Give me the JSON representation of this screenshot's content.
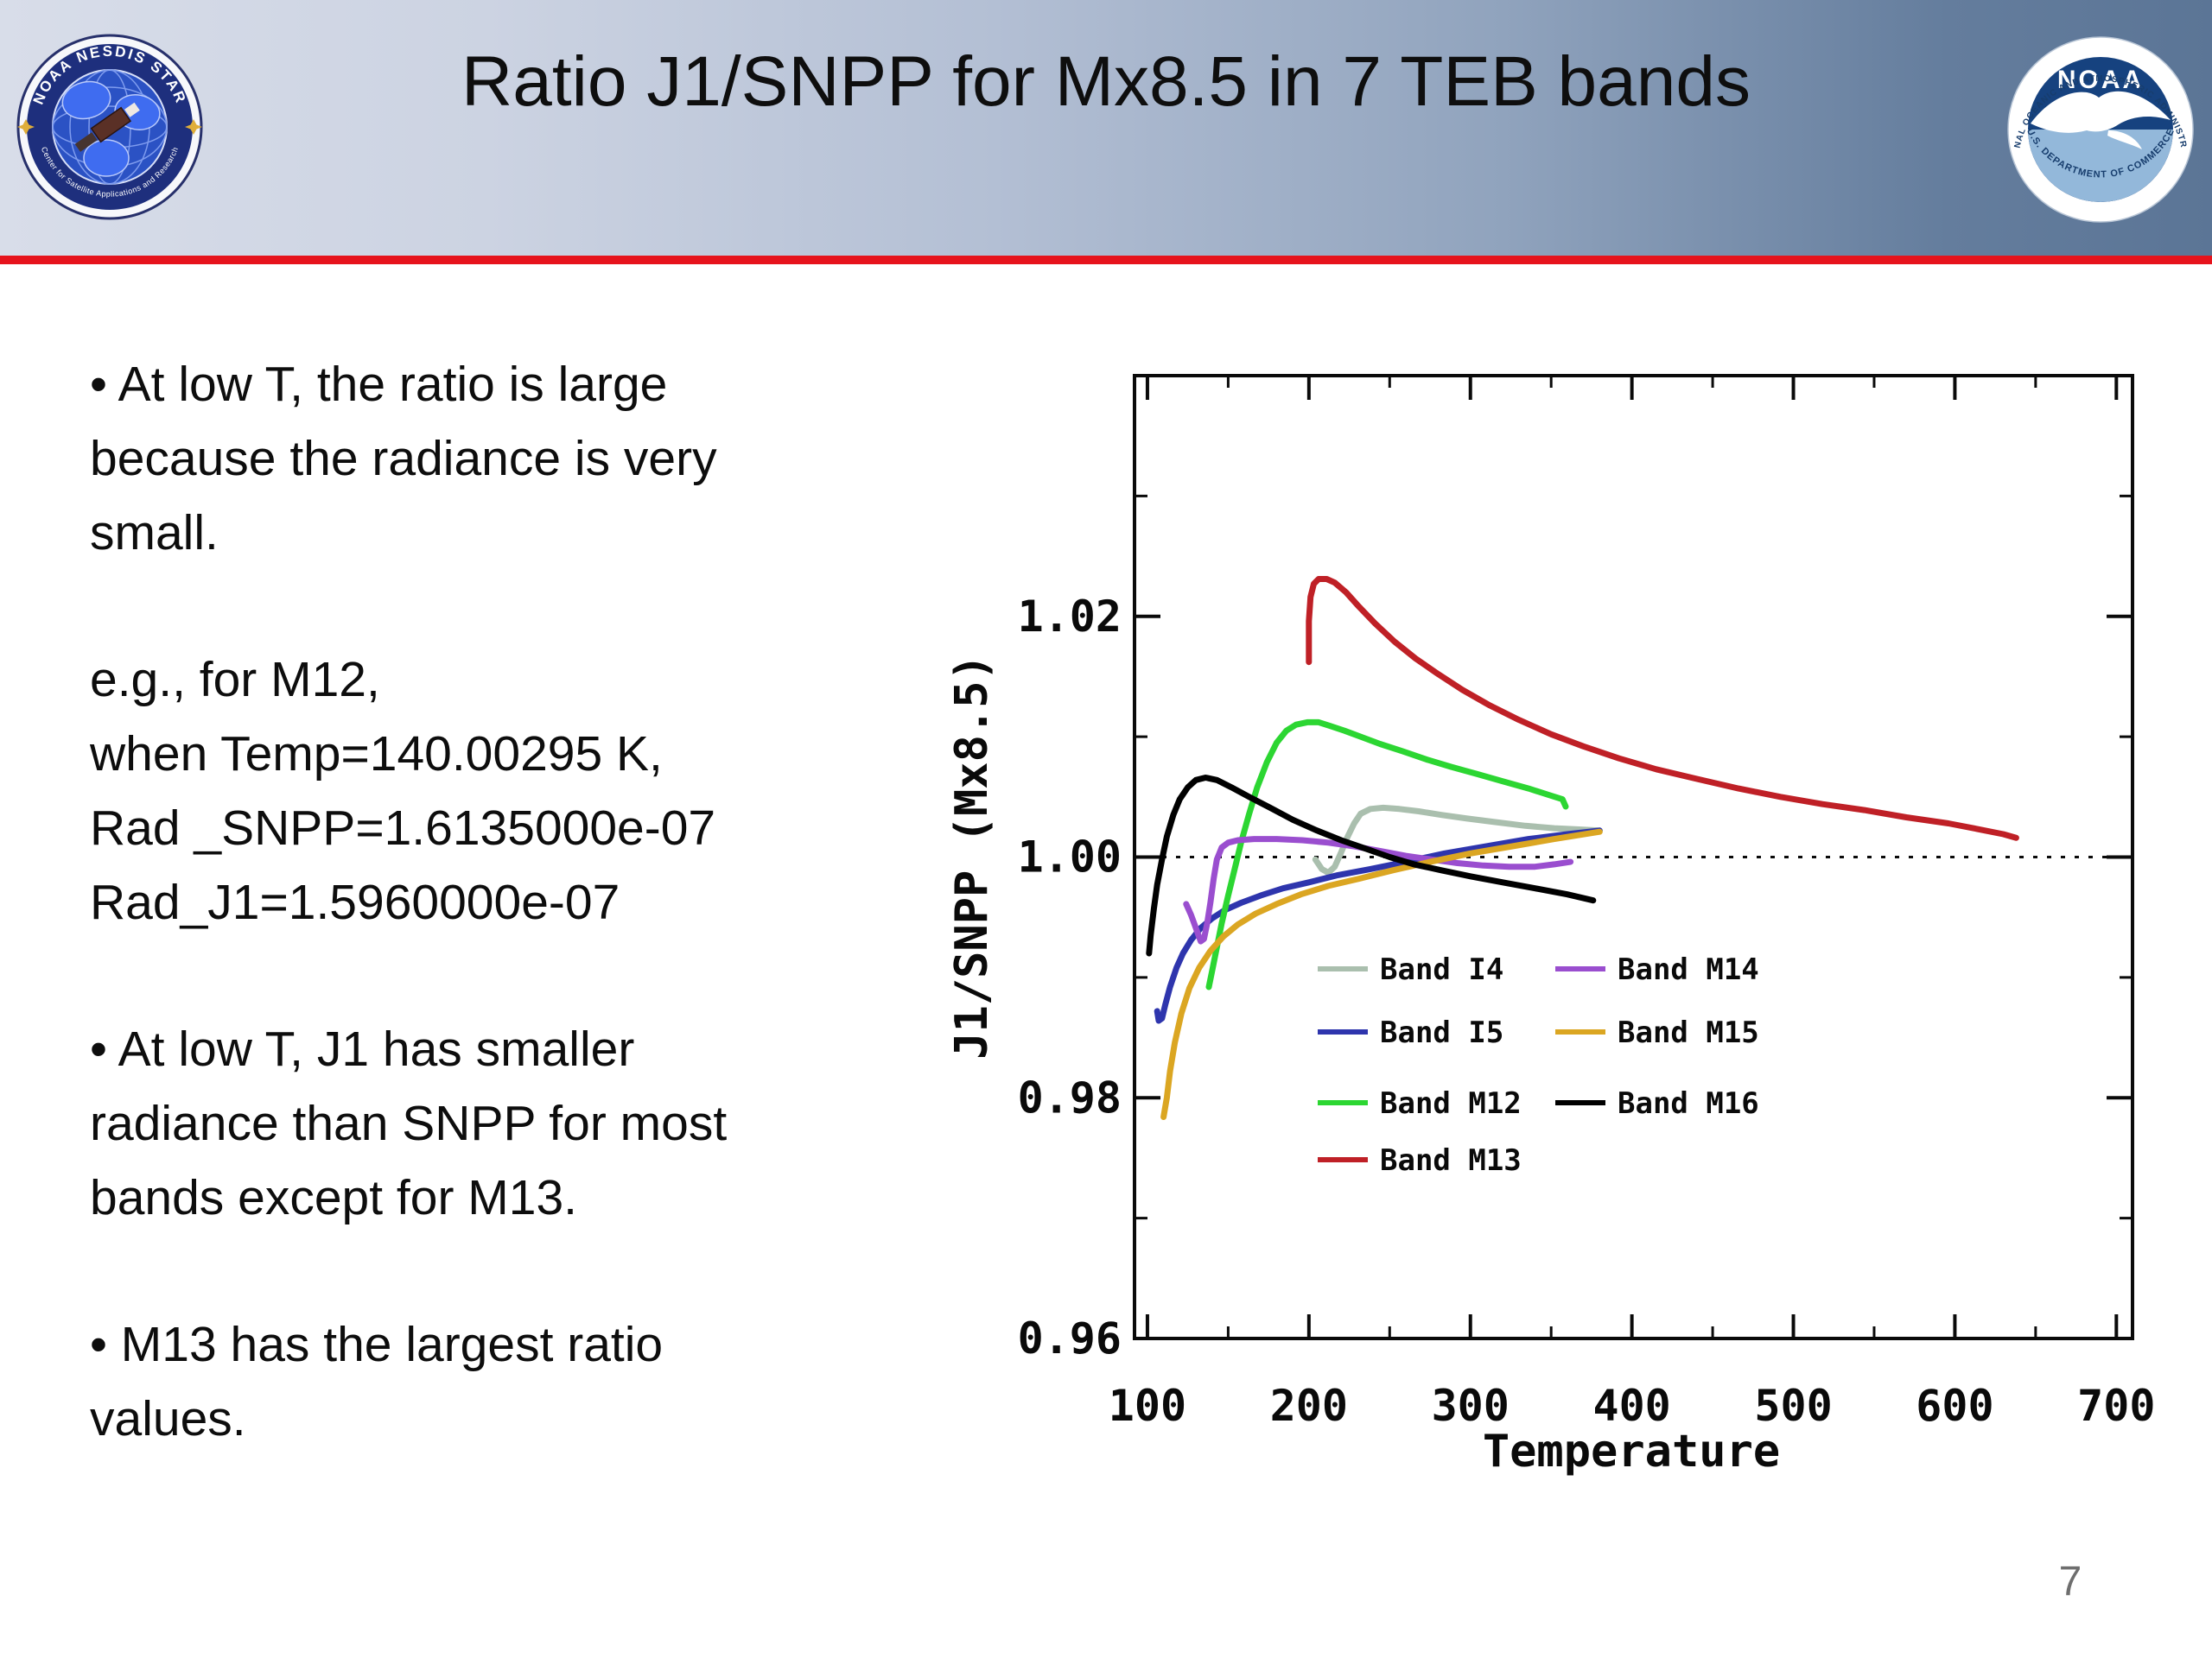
{
  "slide": {
    "title": "Ratio J1/SNPP for Mx8.5 in 7 TEB bands",
    "page_number": "7",
    "accent_red": "#e6131c"
  },
  "logos": {
    "star": {
      "ring_top": "NOAA NESDIS STAR",
      "ring_bottom": "Center for Satellite Applications and Research"
    },
    "noaa": {
      "ring_top": "NATIONAL OCEANIC AND ATMOSPHERIC ADMINISTRATION",
      "ring_bottom": "U.S. DEPARTMENT OF COMMERCE",
      "wordmark": "NOAA"
    }
  },
  "body": {
    "para1": "•  At low T, the ratio is large\nbecause the radiance is very\nsmall.",
    "para2": "e.g., for M12,\nwhen Temp=140.00295 K,\nRad _SNPP=1.6135000e-07\nRad_J1=1.5960000e-07",
    "para3": "• At low T,  J1 has smaller\nradiance than SNPP for most\nbands except for M13.",
    "para4": "•  M13 has the largest ratio\nvalues."
  },
  "chart_data": {
    "type": "line",
    "title": "",
    "xlabel": "Temperature",
    "ylabel": "J1/SNPP (Mx8.5)",
    "xlim": [
      92,
      710
    ],
    "ylim": [
      0.96,
      1.04
    ],
    "x_ticks": [
      100,
      200,
      300,
      400,
      500,
      600,
      700
    ],
    "y_ticks": [
      0.96,
      0.98,
      1.0,
      1.02
    ],
    "y_tick_labels": [
      "0.96",
      "0.98",
      "1.00",
      "1.02"
    ],
    "x_minor_step": 50,
    "y_minor_step": 0.01,
    "grid": false,
    "reference_line_y": 1.0,
    "legend_position": "inside lower-center, two columns",
    "series": [
      {
        "name": "Band I4",
        "color": "#aabfae",
        "legend_col": 0,
        "legend_row": 0,
        "points": [
          [
            204,
            0.9998
          ],
          [
            208,
            0.999
          ],
          [
            212,
            0.9987
          ],
          [
            216,
            0.9992
          ],
          [
            220,
            1.0004
          ],
          [
            224,
            1.0017
          ],
          [
            228,
            1.0028
          ],
          [
            232,
            1.0036
          ],
          [
            238,
            1.004
          ],
          [
            246,
            1.0041
          ],
          [
            256,
            1.004
          ],
          [
            268,
            1.0038
          ],
          [
            282,
            1.0035
          ],
          [
            298,
            1.0032
          ],
          [
            316,
            1.0029
          ],
          [
            334,
            1.0026
          ],
          [
            352,
            1.0024
          ],
          [
            366,
            1.0023
          ],
          [
            380,
            1.0022
          ]
        ]
      },
      {
        "name": "Band I5",
        "color": "#2e35ad",
        "legend_col": 0,
        "legend_row": 1,
        "points": [
          [
            106,
            0.9872
          ],
          [
            107,
            0.9864
          ],
          [
            109,
            0.9866
          ],
          [
            111,
            0.9877
          ],
          [
            114,
            0.9892
          ],
          [
            118,
            0.9908
          ],
          [
            122,
            0.992
          ],
          [
            127,
            0.9931
          ],
          [
            133,
            0.9941
          ],
          [
            140,
            0.9949
          ],
          [
            148,
            0.9956
          ],
          [
            158,
            0.9962
          ],
          [
            170,
            0.9968
          ],
          [
            184,
            0.9974
          ],
          [
            200,
            0.9979
          ],
          [
            218,
            0.9985
          ],
          [
            238,
            0.999
          ],
          [
            260,
            0.9996
          ],
          [
            284,
            1.0003
          ],
          [
            310,
            1.0009
          ],
          [
            336,
            1.0015
          ],
          [
            360,
            1.0019
          ],
          [
            380,
            1.0022
          ]
        ]
      },
      {
        "name": "Band M12",
        "color": "#2cd632",
        "legend_col": 0,
        "legend_row": 2,
        "points": [
          [
            138,
            0.9892
          ],
          [
            140,
            0.9905
          ],
          [
            143,
            0.9925
          ],
          [
            146,
            0.9945
          ],
          [
            150,
            0.9968
          ],
          [
            154,
            0.999
          ],
          [
            158,
            1.0012
          ],
          [
            163,
            1.0036
          ],
          [
            168,
            1.0058
          ],
          [
            174,
            1.0079
          ],
          [
            180,
            1.0095
          ],
          [
            186,
            1.0105
          ],
          [
            192,
            1.011
          ],
          [
            199,
            1.0112
          ],
          [
            206,
            1.0112
          ],
          [
            213,
            1.0109
          ],
          [
            222,
            1.0105
          ],
          [
            232,
            1.01
          ],
          [
            244,
            1.0094
          ],
          [
            258,
            1.0088
          ],
          [
            273,
            1.0081
          ],
          [
            288,
            1.0075
          ],
          [
            304,
            1.0069
          ],
          [
            320,
            1.0063
          ],
          [
            336,
            1.0057
          ],
          [
            350,
            1.0051
          ],
          [
            357,
            1.0048
          ],
          [
            359,
            1.0042
          ]
        ]
      },
      {
        "name": "Band M13",
        "color": "#bf2026",
        "legend_col": 0,
        "legend_row": 3,
        "points": [
          [
            200,
            1.0162
          ],
          [
            200,
            1.0196
          ],
          [
            201,
            1.0216
          ],
          [
            203,
            1.0227
          ],
          [
            206,
            1.0231
          ],
          [
            211,
            1.0231
          ],
          [
            216,
            1.0228
          ],
          [
            223,
            1.022
          ],
          [
            231,
            1.0208
          ],
          [
            241,
            1.0194
          ],
          [
            253,
            1.0179
          ],
          [
            266,
            1.0165
          ],
          [
            280,
            1.0152
          ],
          [
            295,
            1.0139
          ],
          [
            312,
            1.0126
          ],
          [
            330,
            1.0114
          ],
          [
            350,
            1.0102
          ],
          [
            370,
            1.0092
          ],
          [
            392,
            1.0082
          ],
          [
            415,
            1.0073
          ],
          [
            440,
            1.0065
          ],
          [
            466,
            1.0057
          ],
          [
            492,
            1.005
          ],
          [
            518,
            1.0044
          ],
          [
            544,
            1.0039
          ],
          [
            570,
            1.0033
          ],
          [
            596,
            1.0028
          ],
          [
            615,
            1.0023
          ],
          [
            630,
            1.0019
          ],
          [
            638,
            1.0016
          ]
        ]
      },
      {
        "name": "Band M14",
        "color": "#9a4ecf",
        "legend_col": 1,
        "legend_row": 0,
        "points": [
          [
            124,
            0.9961
          ],
          [
            127,
            0.9952
          ],
          [
            130,
            0.9941
          ],
          [
            133,
            0.993
          ],
          [
            135,
            0.9932
          ],
          [
            137,
            0.9945
          ],
          [
            139,
            0.9962
          ],
          [
            141,
            0.9982
          ],
          [
            143,
            0.9998
          ],
          [
            146,
            1.0008
          ],
          [
            150,
            1.0012
          ],
          [
            156,
            1.0014
          ],
          [
            166,
            1.0015
          ],
          [
            180,
            1.0015
          ],
          [
            196,
            1.0014
          ],
          [
            212,
            1.0012
          ],
          [
            228,
            1.0009
          ],
          [
            244,
            1.0005
          ],
          [
            260,
            1.0001
          ],
          [
            276,
            0.9998
          ],
          [
            292,
            0.9995
          ],
          [
            308,
            0.9993
          ],
          [
            324,
            0.9992
          ],
          [
            340,
            0.9992
          ],
          [
            352,
            0.9994
          ],
          [
            362,
            0.9996
          ]
        ]
      },
      {
        "name": "Band M15",
        "color": "#dba622",
        "legend_col": 1,
        "legend_row": 1,
        "points": [
          [
            110,
            0.9784
          ],
          [
            112,
            0.98
          ],
          [
            114,
            0.9822
          ],
          [
            117,
            0.9846
          ],
          [
            121,
            0.987
          ],
          [
            126,
            0.9891
          ],
          [
            132,
            0.9908
          ],
          [
            139,
            0.9922
          ],
          [
            147,
            0.9934
          ],
          [
            156,
            0.9944
          ],
          [
            167,
            0.9953
          ],
          [
            180,
            0.9961
          ],
          [
            195,
            0.9969
          ],
          [
            212,
            0.9976
          ],
          [
            231,
            0.9982
          ],
          [
            252,
            0.9989
          ],
          [
            275,
            0.9996
          ],
          [
            300,
            1.0003
          ],
          [
            326,
            1.0009
          ],
          [
            352,
            1.0015
          ],
          [
            380,
            1.0021
          ]
        ]
      },
      {
        "name": "Band M16",
        "color": "#000000",
        "legend_col": 1,
        "legend_row": 2,
        "points": [
          [
            101,
            0.992
          ],
          [
            102,
            0.9935
          ],
          [
            104,
            0.9957
          ],
          [
            106,
            0.9977
          ],
          [
            109,
            0.9998
          ],
          [
            112,
            1.0017
          ],
          [
            116,
            1.0035
          ],
          [
            120,
            1.0048
          ],
          [
            125,
            1.0058
          ],
          [
            130,
            1.0064
          ],
          [
            136,
            1.0066
          ],
          [
            143,
            1.0064
          ],
          [
            152,
            1.0058
          ],
          [
            163,
            1.005
          ],
          [
            176,
            1.0041
          ],
          [
            190,
            1.0031
          ],
          [
            205,
            1.0022
          ],
          [
            220,
            1.0014
          ],
          [
            235,
            1.0007
          ],
          [
            250,
            1.0
          ],
          [
            265,
            0.9994
          ],
          [
            282,
            0.9989
          ],
          [
            300,
            0.9984
          ],
          [
            320,
            0.9979
          ],
          [
            340,
            0.9974
          ],
          [
            360,
            0.9969
          ],
          [
            376,
            0.9964
          ]
        ]
      }
    ]
  }
}
